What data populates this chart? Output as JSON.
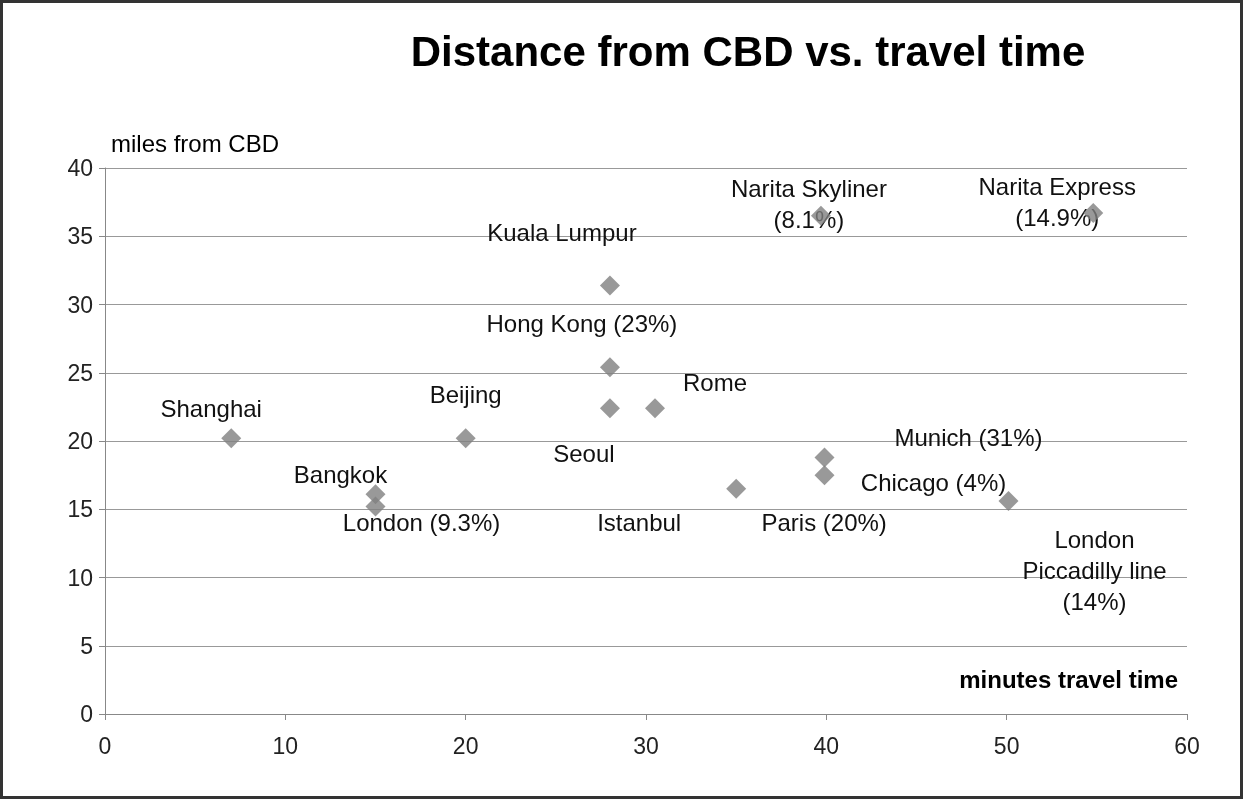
{
  "chart_data": {
    "type": "scatter",
    "title": "Distance from CBD vs. travel time",
    "xlabel": "minutes travel time",
    "ylabel": "miles from CBD",
    "x": [
      7,
      20,
      15,
      15,
      28,
      28,
      28,
      30.5,
      39.7,
      54.8,
      39.9,
      39.9,
      35,
      50.1
    ],
    "series": [
      {
        "color": "#7f7f7f",
        "values": [
          20.2,
          20.2,
          16.1,
          15.2,
          31.4,
          25.4,
          22.4,
          22.4,
          36.5,
          36.7,
          18.8,
          17.5,
          16.5,
          15.6
        ]
      }
    ],
    "marker": "diamond",
    "grid": "y",
    "xlim": [
      0,
      60
    ],
    "xticks": [
      0,
      10,
      20,
      30,
      40,
      50,
      60
    ],
    "ylim": [
      0,
      40
    ],
    "yticks": [
      0,
      5,
      10,
      15,
      20,
      25,
      30,
      35,
      40
    ],
    "annotations": [
      {
        "text": "Shanghai",
        "x": 7,
        "y": 20.2
      },
      {
        "text": "Beijing",
        "x": 20,
        "y": 20.2
      },
      {
        "text": "Bangkok",
        "x": 15,
        "y": 16.1
      },
      {
        "text": "London (9.3%)",
        "x": 15,
        "y": 15.2
      },
      {
        "text": "Kuala Lumpur",
        "x": 28,
        "y": 31.4
      },
      {
        "text": "Hong Kong (23%)",
        "x": 28,
        "y": 25.4
      },
      {
        "text": "Seoul",
        "x": 28,
        "y": 22.4
      },
      {
        "text": "Rome",
        "x": 30.5,
        "y": 22.4
      },
      {
        "text": "Narita Skyliner\n(8.1%)",
        "x": 39.7,
        "y": 36.5
      },
      {
        "text": "Narita Express\n(14.9%)",
        "x": 54.8,
        "y": 36.7
      },
      {
        "text": "Munich (31%)",
        "x": 39.9,
        "y": 18.8
      },
      {
        "text": "Chicago (4%)",
        "x": 39.9,
        "y": 17.5
      },
      {
        "text": "Paris (20%)",
        "x": 35,
        "y": 16.5
      },
      {
        "text": "Istanbul",
        "x": 35,
        "y": 16.5
      },
      {
        "text": "London\nPiccadilly line\n(14%)",
        "x": 50.1,
        "y": 15.6
      }
    ]
  }
}
